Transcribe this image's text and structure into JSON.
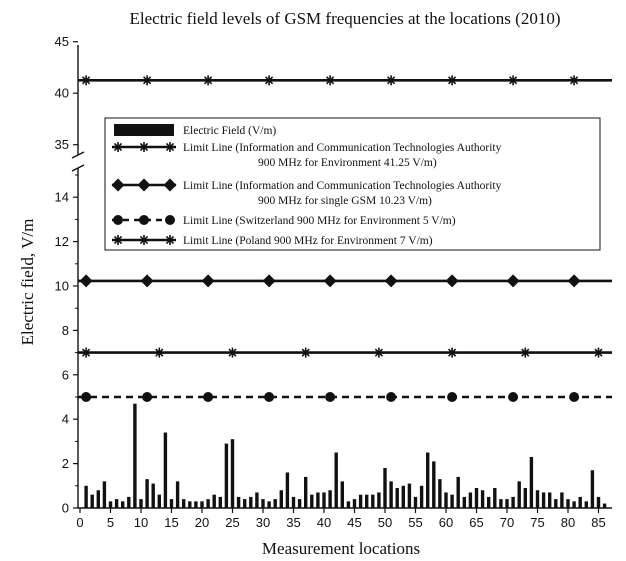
{
  "chart_data": {
    "type": "bar",
    "title": "Electric field levels of GSM frequencies at the locations (2010)",
    "xlabel": "Measurement locations",
    "ylabel": "Electric field, V/m",
    "xlim": [
      0,
      87
    ],
    "x_ticks": [
      0,
      5,
      10,
      15,
      20,
      25,
      30,
      35,
      40,
      45,
      50,
      55,
      60,
      65,
      70,
      75,
      80,
      85
    ],
    "y_axis_break": {
      "lower_range": [
        0,
        15
      ],
      "upper_range": [
        34,
        45
      ]
    },
    "y_ticks_lower": [
      0,
      2,
      4,
      6,
      8,
      10,
      12,
      14
    ],
    "y_ticks_upper": [
      35,
      40,
      45
    ],
    "legend_placement": "center",
    "grid": false,
    "series": [
      {
        "name": "Electric Field (V/m)",
        "kind": "bar",
        "color": "#111111",
        "x": [
          1,
          2,
          3,
          4,
          5,
          6,
          7,
          8,
          9,
          10,
          11,
          12,
          13,
          14,
          15,
          16,
          17,
          18,
          19,
          20,
          21,
          22,
          23,
          24,
          25,
          26,
          27,
          28,
          29,
          30,
          31,
          32,
          33,
          34,
          35,
          36,
          37,
          38,
          39,
          40,
          41,
          42,
          43,
          44,
          45,
          46,
          47,
          48,
          49,
          50,
          51,
          52,
          53,
          54,
          55,
          56,
          57,
          58,
          59,
          60,
          61,
          62,
          63,
          64,
          65,
          66,
          67,
          68,
          69,
          70,
          71,
          72,
          73,
          74,
          75,
          76,
          77,
          78,
          79,
          80,
          81,
          82,
          83,
          84,
          85,
          86
        ],
        "values": [
          1.0,
          0.6,
          0.8,
          1.2,
          0.3,
          0.4,
          0.3,
          0.5,
          4.7,
          0.4,
          1.3,
          1.1,
          0.6,
          3.4,
          0.4,
          1.2,
          0.4,
          0.3,
          0.3,
          0.3,
          0.4,
          0.6,
          0.5,
          2.9,
          3.1,
          0.5,
          0.4,
          0.5,
          0.7,
          0.4,
          0.3,
          0.4,
          0.8,
          1.6,
          0.5,
          0.4,
          1.4,
          0.6,
          0.7,
          0.7,
          0.8,
          2.5,
          1.2,
          0.3,
          0.4,
          0.6,
          0.6,
          0.6,
          0.7,
          1.8,
          1.2,
          0.9,
          1.0,
          1.1,
          0.5,
          1.0,
          2.5,
          2.1,
          1.3,
          0.7,
          0.6,
          1.4,
          0.5,
          0.7,
          0.9,
          0.8,
          0.5,
          0.9,
          0.4,
          0.4,
          0.5,
          1.2,
          0.9,
          2.3,
          0.8,
          0.7,
          0.7,
          0.4,
          0.7,
          0.4,
          0.3,
          0.5,
          0.3,
          1.7,
          0.5,
          0.2
        ]
      },
      {
        "name": "Limit Line (Information and Communication Technologies Authority 900 MHz for Environment 41.25 V/m)",
        "kind": "line",
        "marker": "asterisk",
        "value": 41.25,
        "marker_x": [
          1,
          11,
          21,
          31,
          41,
          51,
          61,
          71,
          81
        ]
      },
      {
        "name": "Limit Line (Information and Communication Technologies Authority 900 MHz for single GSM 10.23 V/m)",
        "kind": "line",
        "marker": "diamond",
        "value": 10.23,
        "marker_x": [
          1,
          11,
          21,
          31,
          41,
          51,
          61,
          71,
          81
        ]
      },
      {
        "name": "Limit Line (Switzerland 900 MHz for Environment 5 V/m)",
        "kind": "line",
        "marker": "circle",
        "dashed": true,
        "value": 5,
        "marker_x": [
          1,
          11,
          21,
          31,
          41,
          51,
          61,
          71,
          81
        ]
      },
      {
        "name": "Limit Line (Poland 900 MHz for Environment 7 V/m)",
        "kind": "line",
        "marker": "asterisk",
        "value": 7,
        "marker_x": [
          1,
          13,
          25,
          37,
          49,
          61,
          73,
          85
        ]
      }
    ],
    "legend": [
      {
        "label": "Electric Field (V/m)"
      },
      {
        "label": "Limit Line (Information and Communication Technologies Authority",
        "label2": "900 MHz for Environment 41.25 V/m)"
      },
      {
        "label": "Limit Line (Information and Communication Technologies Authority",
        "label2": "900 MHz for single GSM 10.23 V/m)"
      },
      {
        "label": "Limit Line (Switzerland 900 MHz for Environment 5 V/m)"
      },
      {
        "label": "Limit Line (Poland 900 MHz for Environment 7 V/m)"
      }
    ]
  }
}
